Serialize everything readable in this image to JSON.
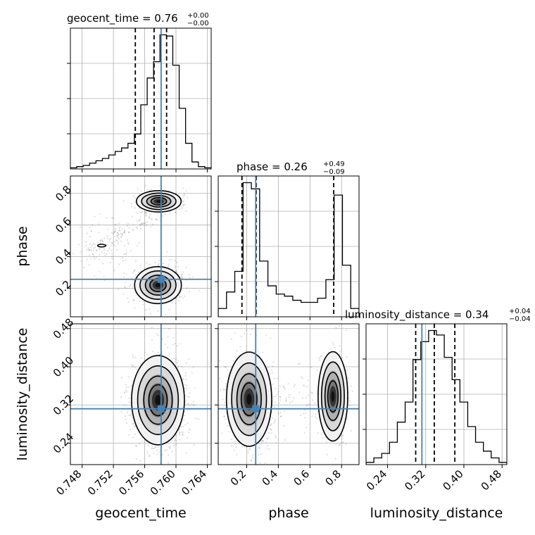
{
  "chart_data": {
    "type": "corner",
    "parameters": [
      {
        "name": "geocent_time",
        "truth": 0.7581,
        "range": [
          0.7465,
          0.7645
        ],
        "ticks": [
          "0.748",
          "0.752",
          "0.756",
          "0.760",
          "0.764"
        ],
        "tick_values": [
          0.748,
          0.752,
          0.756,
          0.76,
          0.764
        ],
        "quantiles": [
          0.7548,
          0.7572,
          0.7588
        ],
        "title_main": "geocent_time = 0.76",
        "title_plus": "+0.00",
        "title_minus": "−0.00",
        "hist_counts": [
          1,
          2,
          3,
          5,
          7,
          9,
          12,
          15,
          18,
          22,
          30,
          55,
          78,
          92,
          115,
          114,
          89,
          52,
          22,
          6,
          2,
          1
        ]
      },
      {
        "name": "phase",
        "truth": 0.257,
        "range": [
          0.02,
          0.91
        ],
        "ticks": [
          "0.2",
          "0.4",
          "0.6",
          "0.8"
        ],
        "tick_values": [
          0.2,
          0.4,
          0.6,
          0.8
        ],
        "quantiles": [
          0.17,
          0.26,
          0.75
        ],
        "title_main": "phase = 0.26",
        "title_plus": "+0.49",
        "title_minus": "−0.09",
        "hist_counts": [
          4,
          12,
          22,
          65,
          62,
          27,
          15,
          11,
          10,
          8,
          7,
          7,
          9,
          18,
          59,
          25,
          4
        ]
      },
      {
        "name": "luminosity_distance",
        "truth": 0.312,
        "range": [
          0.195,
          0.49
        ],
        "ticks": [
          "0.24",
          "0.32",
          "0.40",
          "0.48"
        ],
        "tick_values": [
          0.24,
          0.32,
          0.4,
          0.48
        ],
        "quantiles": [
          0.299,
          0.338,
          0.381
        ],
        "title_main": "luminosity_distance = 0.34",
        "title_plus": "+0.04",
        "title_minus": "−0.04",
        "hist_counts": [
          1,
          3,
          5,
          10,
          19,
          28,
          47,
          55,
          60,
          58,
          48,
          38,
          28,
          17,
          10,
          6,
          3,
          1
        ]
      }
    ],
    "y_ticks": {
      "phase": [
        "0.2",
        "0.4",
        "0.6",
        "0.8"
      ],
      "luminosity_distance": [
        "0.24",
        "0.32",
        "0.40",
        "0.48"
      ]
    },
    "truth_color": "#4682b4",
    "quantile_style": "dashed-black",
    "grid": true
  }
}
